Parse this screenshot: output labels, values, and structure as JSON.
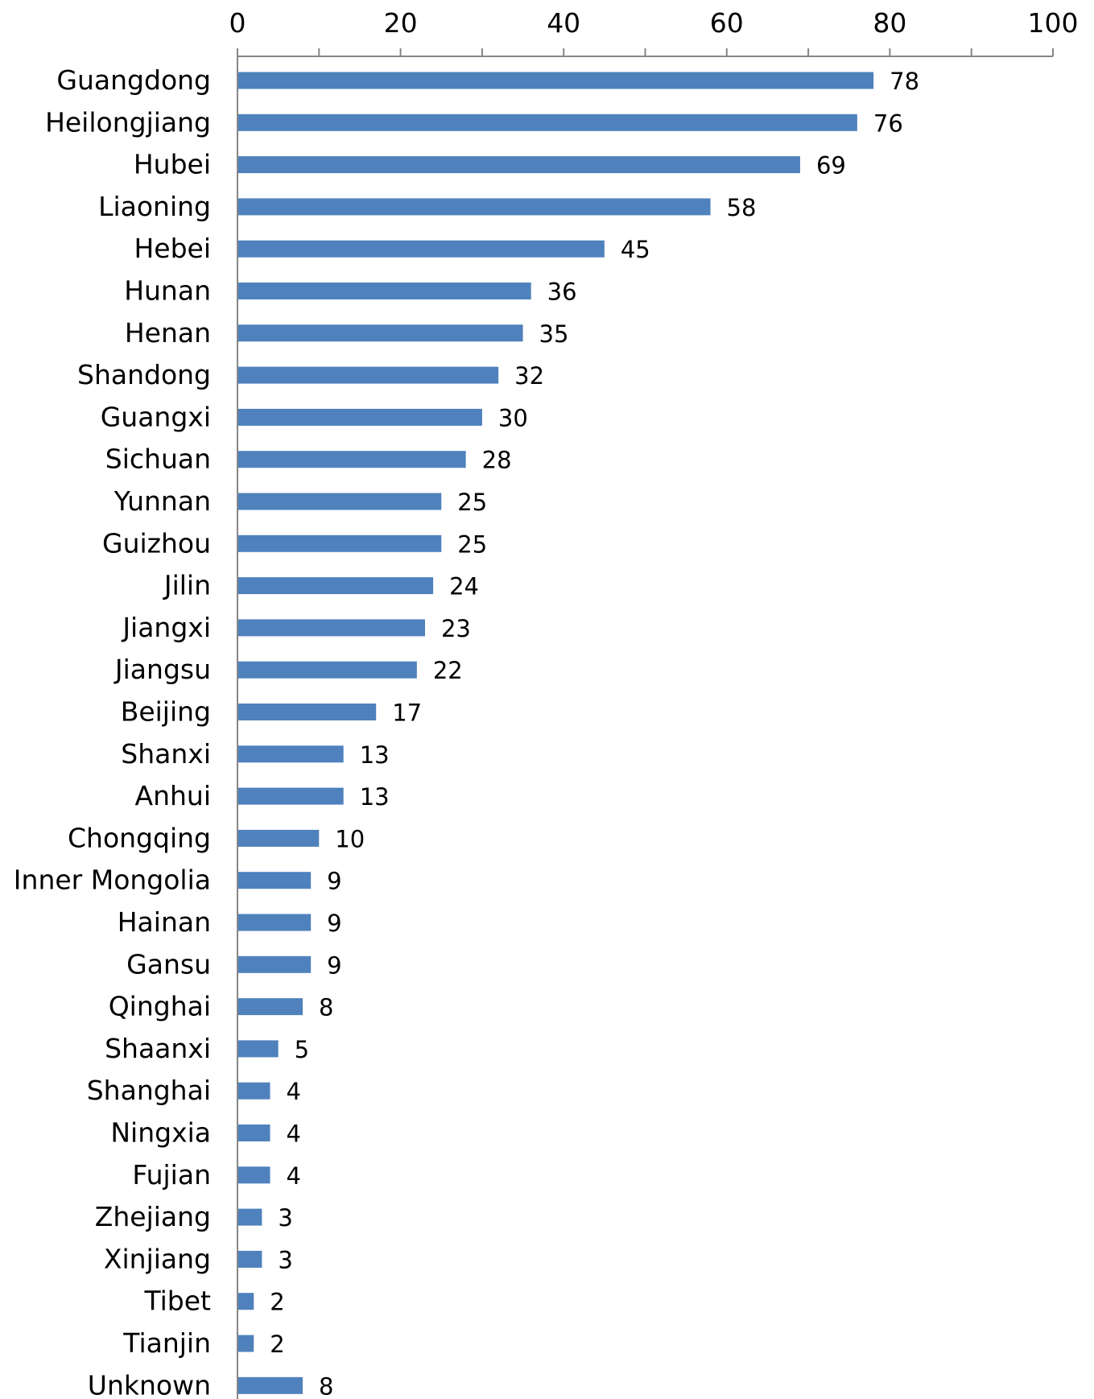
{
  "chart_data": {
    "type": "bar",
    "orientation": "horizontal",
    "title": "",
    "xlabel": "",
    "ylabel": "",
    "xlim": [
      0,
      100
    ],
    "x_ticks": [
      0,
      20,
      40,
      60,
      80,
      100
    ],
    "x_axis_position": "top",
    "grid": false,
    "legend": "none",
    "bar_color": "#4f81bd",
    "categories": [
      "Guangdong",
      "Heilongjiang",
      "Hubei",
      "Liaoning",
      "Hebei",
      "Hunan",
      "Henan",
      "Shandong",
      "Guangxi",
      "Sichuan",
      "Yunnan",
      "Guizhou",
      "Jilin",
      "Jiangxi",
      "Jiangsu",
      "Beijing",
      "Shanxi",
      "Anhui",
      "Chongqing",
      "Inner Mongolia",
      "Hainan",
      "Gansu",
      "Qinghai",
      "Shaanxi",
      "Shanghai",
      "Ningxia",
      "Fujian",
      "Zhejiang",
      "Xinjiang",
      "Tibet",
      "Tianjin",
      "Unknown"
    ],
    "values": [
      78,
      76,
      69,
      58,
      45,
      36,
      35,
      32,
      30,
      28,
      25,
      25,
      24,
      23,
      22,
      17,
      13,
      13,
      10,
      9,
      9,
      9,
      8,
      5,
      4,
      4,
      4,
      3,
      3,
      2,
      2,
      8
    ]
  }
}
